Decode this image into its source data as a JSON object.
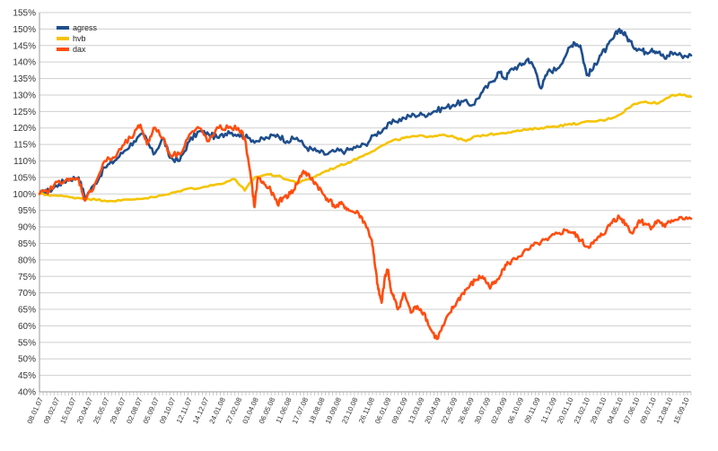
{
  "chart_data": {
    "type": "line",
    "title": "",
    "xlabel": "",
    "ylabel": "",
    "ylim": [
      40,
      155
    ],
    "y_step": 5,
    "y_unit": "%",
    "grid": true,
    "legend_position": "top-left",
    "x_tick_labels": [
      "08.01.07",
      "09.02.07",
      "15.03.07",
      "20.04.07",
      "25.05.07",
      "29.06.07",
      "02.08.07",
      "05.09.07",
      "09.10.07",
      "12.11.07",
      "14.12.07",
      "24.01.08",
      "27.02.08",
      "03.04.08",
      "06.05.08",
      "11.06.08",
      "17.07.08",
      "18.08.08",
      "19.09.08",
      "23.10.08",
      "26.11.08",
      "06.01.09",
      "09.02.09",
      "13.03.09",
      "20.04.09",
      "22.05.09",
      "26.06.09",
      "30.07.09",
      "02.09.09",
      "06.10.09",
      "09.11.09",
      "11.12.09",
      "20.01.10",
      "23.02.10",
      "29.03.10",
      "04.05.10",
      "07.06.10",
      "09.07.10",
      "12.08.10",
      "15.09.10"
    ],
    "x_range": [
      0,
      1000
    ],
    "series": [
      {
        "name": "agress",
        "color": "#1f4e8c",
        "points": [
          [
            0,
            100
          ],
          [
            15,
            101
          ],
          [
            30,
            103
          ],
          [
            45,
            104.5
          ],
          [
            60,
            105
          ],
          [
            70,
            99
          ],
          [
            85,
            103
          ],
          [
            100,
            108
          ],
          [
            115,
            110
          ],
          [
            130,
            113
          ],
          [
            145,
            116
          ],
          [
            160,
            118
          ],
          [
            175,
            112
          ],
          [
            190,
            117
          ],
          [
            200,
            111
          ],
          [
            215,
            110
          ],
          [
            230,
            116
          ],
          [
            245,
            119
          ],
          [
            260,
            118
          ],
          [
            275,
            117
          ],
          [
            290,
            119
          ],
          [
            305,
            118
          ],
          [
            320,
            117
          ],
          [
            335,
            116
          ],
          [
            350,
            117
          ],
          [
            365,
            118
          ],
          [
            380,
            116
          ],
          [
            395,
            117
          ],
          [
            410,
            114
          ],
          [
            425,
            113
          ],
          [
            440,
            112
          ],
          [
            455,
            113
          ],
          [
            470,
            113
          ],
          [
            485,
            114
          ],
          [
            500,
            115
          ],
          [
            515,
            118
          ],
          [
            530,
            120
          ],
          [
            545,
            122
          ],
          [
            560,
            123
          ],
          [
            575,
            124
          ],
          [
            590,
            124
          ],
          [
            605,
            125
          ],
          [
            620,
            126
          ],
          [
            635,
            127
          ],
          [
            650,
            128
          ],
          [
            665,
            127
          ],
          [
            680,
            131
          ],
          [
            695,
            134
          ],
          [
            705,
            137
          ],
          [
            715,
            135
          ],
          [
            725,
            138
          ],
          [
            740,
            139
          ],
          [
            750,
            141
          ],
          [
            760,
            138
          ],
          [
            770,
            132
          ],
          [
            780,
            137
          ],
          [
            795,
            138
          ],
          [
            810,
            143
          ],
          [
            820,
            146
          ],
          [
            830,
            145
          ],
          [
            840,
            136
          ],
          [
            850,
            138
          ],
          [
            860,
            142
          ],
          [
            870,
            144
          ],
          [
            880,
            147
          ],
          [
            890,
            150
          ],
          [
            900,
            148
          ],
          [
            910,
            145
          ],
          [
            920,
            144
          ],
          [
            930,
            143
          ],
          [
            940,
            144
          ],
          [
            950,
            143
          ],
          [
            960,
            141
          ],
          [
            970,
            143
          ],
          [
            985,
            142
          ],
          [
            1000,
            142
          ]
        ]
      },
      {
        "name": "hvb",
        "color": "#f5c400",
        "points": [
          [
            0,
            100
          ],
          [
            25,
            99.5
          ],
          [
            50,
            99
          ],
          [
            75,
            98.5
          ],
          [
            100,
            98
          ],
          [
            125,
            98
          ],
          [
            150,
            98.5
          ],
          [
            175,
            99
          ],
          [
            200,
            100
          ],
          [
            225,
            101.5
          ],
          [
            250,
            102
          ],
          [
            275,
            103
          ],
          [
            300,
            104.5
          ],
          [
            315,
            101
          ],
          [
            330,
            105
          ],
          [
            350,
            106
          ],
          [
            365,
            105.5
          ],
          [
            385,
            104
          ],
          [
            400,
            103.5
          ],
          [
            420,
            105
          ],
          [
            440,
            107
          ],
          [
            460,
            108.5
          ],
          [
            480,
            110
          ],
          [
            500,
            112
          ],
          [
            520,
            114
          ],
          [
            540,
            116
          ],
          [
            560,
            117
          ],
          [
            580,
            117.5
          ],
          [
            600,
            117.5
          ],
          [
            620,
            118
          ],
          [
            640,
            117
          ],
          [
            655,
            116
          ],
          [
            670,
            117.5
          ],
          [
            690,
            118
          ],
          [
            710,
            118.5
          ],
          [
            730,
            119
          ],
          [
            750,
            119.5
          ],
          [
            770,
            120
          ],
          [
            790,
            120.5
          ],
          [
            810,
            121
          ],
          [
            830,
            121.5
          ],
          [
            850,
            122
          ],
          [
            870,
            122.5
          ],
          [
            890,
            124
          ],
          [
            910,
            127
          ],
          [
            930,
            128
          ],
          [
            950,
            127.5
          ],
          [
            970,
            130
          ],
          [
            985,
            130
          ],
          [
            1000,
            129.5
          ]
        ]
      },
      {
        "name": "dax",
        "color": "#ff4d10",
        "points": [
          [
            0,
            100
          ],
          [
            15,
            101
          ],
          [
            30,
            104
          ],
          [
            45,
            104
          ],
          [
            60,
            104.5
          ],
          [
            70,
            98
          ],
          [
            85,
            103
          ],
          [
            100,
            110
          ],
          [
            115,
            111
          ],
          [
            130,
            115
          ],
          [
            145,
            118
          ],
          [
            155,
            121
          ],
          [
            165,
            115
          ],
          [
            175,
            120
          ],
          [
            190,
            117
          ],
          [
            200,
            112
          ],
          [
            215,
            112
          ],
          [
            230,
            118
          ],
          [
            245,
            120
          ],
          [
            260,
            116
          ],
          [
            275,
            120
          ],
          [
            290,
            120
          ],
          [
            305,
            120
          ],
          [
            315,
            117
          ],
          [
            325,
            104
          ],
          [
            330,
            96
          ],
          [
            335,
            105
          ],
          [
            345,
            103
          ],
          [
            355,
            101
          ],
          [
            365,
            97
          ],
          [
            375,
            99
          ],
          [
            385,
            100
          ],
          [
            395,
            103
          ],
          [
            405,
            107
          ],
          [
            415,
            105
          ],
          [
            425,
            103
          ],
          [
            435,
            100
          ],
          [
            445,
            98
          ],
          [
            455,
            96
          ],
          [
            465,
            97
          ],
          [
            475,
            95
          ],
          [
            490,
            94
          ],
          [
            500,
            91
          ],
          [
            510,
            86
          ],
          [
            515,
            78
          ],
          [
            520,
            71
          ],
          [
            525,
            67
          ],
          [
            530,
            75
          ],
          [
            535,
            77
          ],
          [
            540,
            70
          ],
          [
            545,
            68
          ],
          [
            550,
            65
          ],
          [
            560,
            70
          ],
          [
            570,
            64
          ],
          [
            580,
            66
          ],
          [
            590,
            64
          ],
          [
            600,
            59
          ],
          [
            610,
            56
          ],
          [
            620,
            60
          ],
          [
            630,
            64
          ],
          [
            640,
            67
          ],
          [
            650,
            70
          ],
          [
            660,
            72
          ],
          [
            670,
            74
          ],
          [
            680,
            75
          ],
          [
            690,
            72
          ],
          [
            700,
            73
          ],
          [
            710,
            77
          ],
          [
            720,
            79
          ],
          [
            735,
            81
          ],
          [
            750,
            83
          ],
          [
            765,
            85
          ],
          [
            780,
            86
          ],
          [
            795,
            88
          ],
          [
            810,
            89
          ],
          [
            820,
            88
          ],
          [
            830,
            86
          ],
          [
            840,
            84
          ],
          [
            850,
            85
          ],
          [
            860,
            87
          ],
          [
            870,
            89
          ],
          [
            880,
            92
          ],
          [
            890,
            93
          ],
          [
            900,
            91
          ],
          [
            910,
            88
          ],
          [
            920,
            92
          ],
          [
            930,
            91
          ],
          [
            940,
            90
          ],
          [
            950,
            92
          ],
          [
            960,
            90
          ],
          [
            970,
            92
          ],
          [
            985,
            93
          ],
          [
            1000,
            92.5
          ]
        ]
      }
    ]
  }
}
